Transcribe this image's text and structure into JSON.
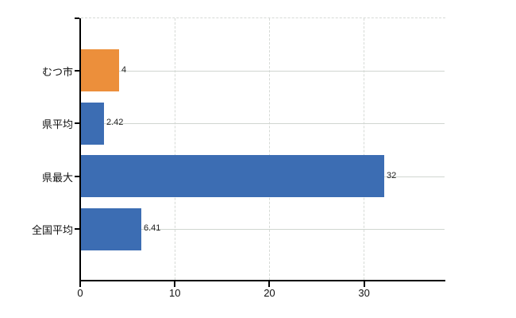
{
  "chart_data": {
    "type": "bar",
    "orientation": "horizontal",
    "title": "",
    "xlabel": "",
    "ylabel": "",
    "categories": [
      "むつ市",
      "県平均",
      "県最大",
      "全国平均"
    ],
    "values": [
      4,
      2.42,
      32,
      6.41
    ],
    "value_labels": [
      "4",
      "2.42",
      "32",
      "6.41"
    ],
    "bar_colors": [
      "#EC8F3B",
      "#3C6DB3",
      "#3C6DB3",
      "#3C6DB3"
    ],
    "x_ticks": [
      0,
      10,
      20,
      30
    ],
    "x_tick_labels": [
      "0",
      "10",
      "20",
      "30"
    ],
    "xlim": [
      0,
      38.5
    ],
    "grid": "vertical dashed gridlines at x ticks, horizontal solid gridlines at category centers, dashed top border",
    "legend_position": "none"
  },
  "colors": {
    "background": "#ffffff",
    "axis": "#000000",
    "grid_dashed": "#d6dad6",
    "grid_solid": "#d0d6d0",
    "text": "#111111",
    "bar_blue": "#3C6DB3",
    "bar_orange": "#EC8F3B"
  }
}
